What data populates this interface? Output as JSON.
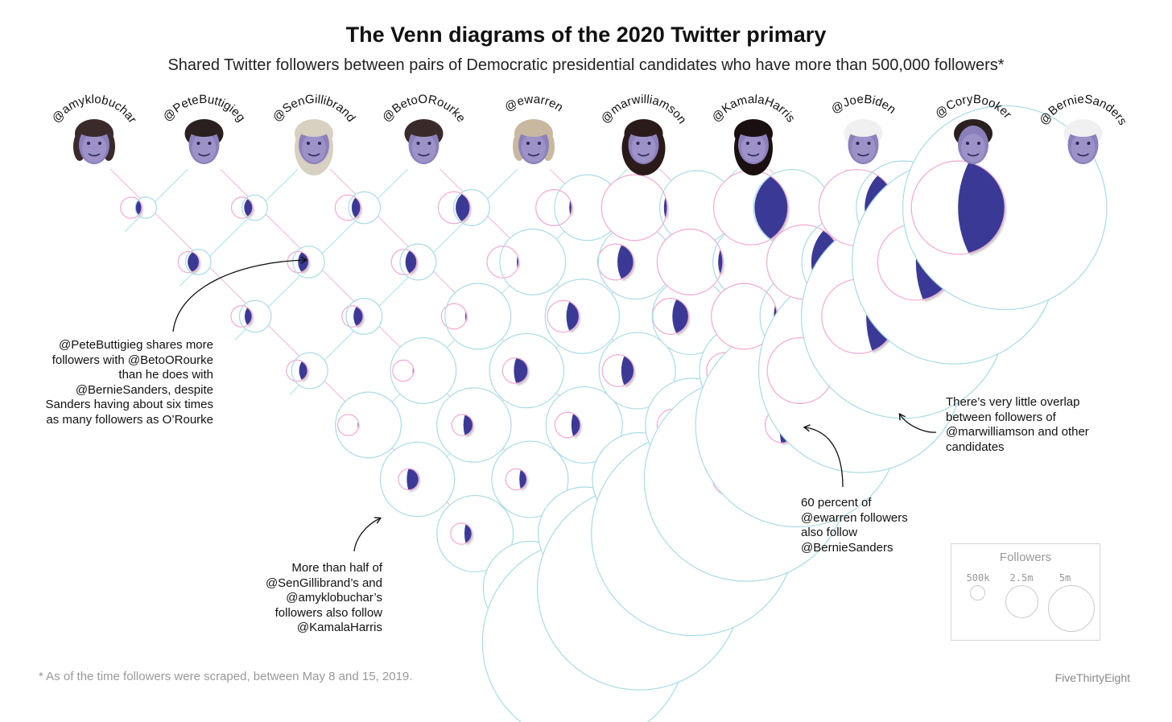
{
  "title": "The Venn diagrams of the 2020 Twitter primary",
  "subtitle": "Shared Twitter followers between pairs of Democratic presidential candidates who have more than 500,000 followers*",
  "colors": {
    "line_pink": "#f2b8dd",
    "line_cyan": "#aee3ec",
    "circle_pink": "#f3a9d3",
    "circle_cyan": "#a9dbe6",
    "overlap": "#3a3a96",
    "photo_bg": "#3d3572"
  },
  "chart_data": {
    "type": "venn-matrix",
    "candidates": [
      {
        "handle": "@amyklobuchar",
        "size": 0.7,
        "hair": "#3a2a2a",
        "hairstyle": "bob"
      },
      {
        "handle": "@PeteButtigieg",
        "size": 0.7,
        "hair": "#2a2020",
        "hairstyle": "short"
      },
      {
        "handle": "@SenGillibrand",
        "size": 0.9,
        "hair": "#d8d0c0",
        "hairstyle": "long"
      },
      {
        "handle": "@BetoORourke",
        "size": 1.2,
        "hair": "#3a2a2a",
        "hairstyle": "short"
      },
      {
        "handle": "@ewarren",
        "size": 1.4,
        "hair": "#c8b8a0",
        "hairstyle": "bob"
      },
      {
        "handle": "@marwilliamson",
        "size": 2.8,
        "hair": "#2a1a1a",
        "hairstyle": "curly"
      },
      {
        "handle": "@KamalaHarris",
        "size": 3.2,
        "hair": "#1a1010",
        "hairstyle": "long"
      },
      {
        "handle": "@JoeBiden",
        "size": 3.3,
        "hair": "#f0f0f0",
        "hairstyle": "white"
      },
      {
        "handle": "@CoryBooker",
        "size": 4.1,
        "hair": "#2a2020",
        "hairstyle": "bald"
      },
      {
        "handle": "@BernieSanders",
        "size": 9.3,
        "hair": "#f0f0f0",
        "hairstyle": "white"
      }
    ],
    "overlap": [
      [
        0.25,
        0.3,
        0.55,
        0.35,
        0.4,
        0.05,
        0.6,
        0.35,
        0.35,
        0.4
      ],
      [
        0.3,
        0.25,
        0.4,
        0.5,
        0.45,
        0.05,
        0.45,
        0.35,
        0.35,
        0.4
      ],
      [
        0.55,
        0.4,
        0.25,
        0.35,
        0.45,
        0.06,
        0.55,
        0.35,
        0.35,
        0.4
      ],
      [
        0.35,
        0.5,
        0.35,
        0.25,
        0.45,
        0.06,
        0.4,
        0.4,
        0.4,
        0.45
      ],
      [
        0.4,
        0.45,
        0.45,
        0.45,
        0.25,
        0.07,
        0.45,
        0.45,
        0.4,
        0.6
      ],
      [
        0.05,
        0.05,
        0.06,
        0.06,
        0.07,
        0.25,
        0.05,
        0.07,
        0.05,
        0.08
      ],
      [
        0.6,
        0.45,
        0.55,
        0.4,
        0.45,
        0.05,
        0.25,
        0.45,
        0.4,
        0.4
      ],
      [
        0.35,
        0.35,
        0.35,
        0.4,
        0.45,
        0.07,
        0.45,
        0.25,
        0.4,
        0.5
      ],
      [
        0.35,
        0.35,
        0.35,
        0.4,
        0.4,
        0.05,
        0.4,
        0.4,
        0.25,
        0.5
      ],
      [
        0.4,
        0.4,
        0.4,
        0.45,
        0.6,
        0.08,
        0.4,
        0.5,
        0.5,
        0.25
      ]
    ],
    "legend": {
      "title": "Followers",
      "labels": [
        "500k",
        "2.5m",
        "5m"
      ],
      "sizes": [
        0.5,
        2.5,
        5
      ]
    }
  },
  "annotations": {
    "pete": "@PeteButtigieg shares more followers with @BetoORourke than he does with @BernieSanders, despite Sanders having about six times as many followers as O’Rourke",
    "gillibrand": "More than half of @SenGillibrand’s and @amyklobuchar’s followers also follow @KamalaHarris",
    "warren": "60 percent of @ewarren followers also follow @BernieSanders",
    "williamson": "There’s very little overlap between followers of @marwilliamson and other candidates"
  },
  "footnote": "* As of the time followers were scraped, between May 8 and 15, 2019.",
  "credit": "FiveThirtyEight"
}
